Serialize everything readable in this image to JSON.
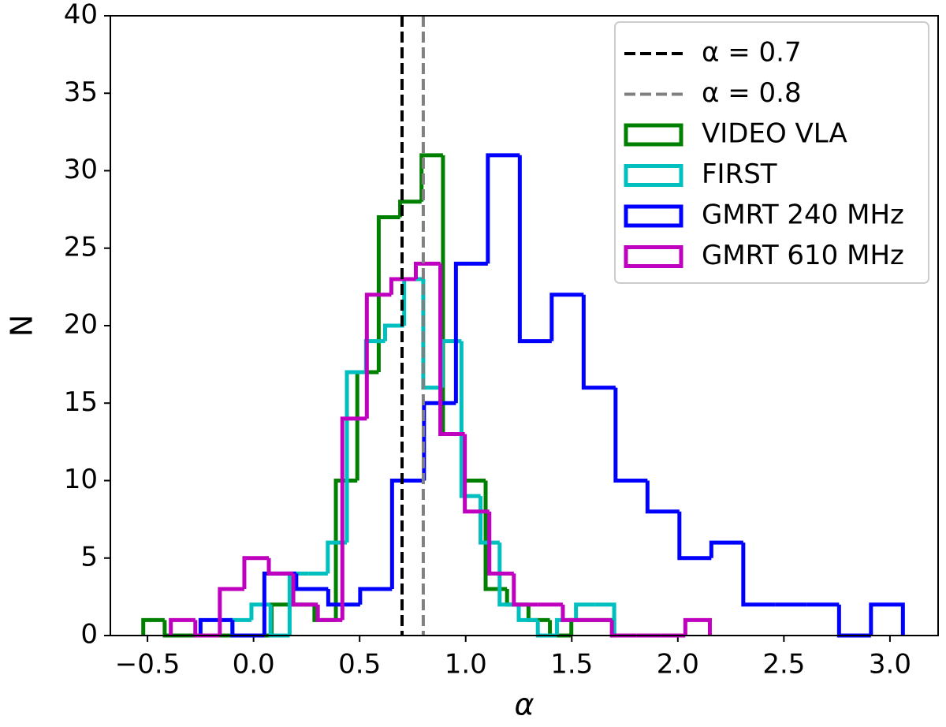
{
  "chart_data": {
    "type": "histogram",
    "xlabel": "α",
    "ylabel": "N",
    "xlim": [
      -0.675,
      3.227
    ],
    "ylim": [
      0,
      40
    ],
    "xticks": [
      {
        "value": -0.5,
        "label": "−0.5"
      },
      {
        "value": 0.0,
        "label": "0.0"
      },
      {
        "value": 0.5,
        "label": "0.5"
      },
      {
        "value": 1.0,
        "label": "1.0"
      },
      {
        "value": 1.5,
        "label": "1.5"
      },
      {
        "value": 2.0,
        "label": "2.0"
      },
      {
        "value": 2.5,
        "label": "2.5"
      },
      {
        "value": 3.0,
        "label": "3.0"
      }
    ],
    "yticks": [
      0,
      5,
      10,
      15,
      20,
      25,
      30,
      35,
      40
    ],
    "legend": "upper right",
    "vlines": [
      {
        "x": 0.7,
        "label": "α = 0.7",
        "color": "#000000"
      },
      {
        "x": 0.8,
        "label": "α = 0.8",
        "color": "#808080"
      }
    ],
    "series": [
      {
        "name": "VIDEO VLA",
        "color": "#008000",
        "bins": [
          -0.52,
          -0.419,
          -0.318,
          -0.217,
          -0.116,
          -0.016,
          0.085,
          0.186,
          0.287,
          0.388,
          0.489,
          0.59,
          0.691,
          0.792,
          0.893,
          0.994,
          1.094,
          1.195,
          1.296,
          1.397,
          1.498,
          1.599,
          1.7
        ],
        "values": [
          1,
          0,
          0,
          0,
          0,
          0,
          2,
          2,
          1,
          10,
          17,
          27,
          28,
          31,
          13,
          10,
          3,
          2,
          1,
          0,
          1,
          1
        ]
      },
      {
        "name": "FIRST",
        "color": "#00bfbf",
        "bins": [
          -0.1,
          -0.01,
          0.08,
          0.17,
          0.26,
          0.35,
          0.44,
          0.53,
          0.62,
          0.71,
          0.8,
          0.89,
          0.98,
          1.07,
          1.16,
          1.25,
          1.34,
          1.43,
          1.52,
          1.61,
          1.7
        ],
        "values": [
          1,
          2,
          0,
          4,
          4,
          6,
          17,
          19,
          20,
          23,
          16,
          19,
          9,
          6,
          2,
          1,
          0,
          1,
          2,
          2
        ]
      },
      {
        "name": "GMRT 240 MHz",
        "color": "#0000ff",
        "bins": [
          -0.25,
          -0.0995,
          0.051,
          0.2015,
          0.352,
          0.5025,
          0.653,
          0.8035,
          0.954,
          1.1045,
          1.255,
          1.4055,
          1.556,
          1.7065,
          1.857,
          2.0075,
          2.158,
          2.3085,
          2.459,
          2.6095,
          2.76,
          2.9105,
          3.061
        ],
        "values": [
          1,
          0,
          4,
          3,
          2,
          3,
          10,
          15,
          24,
          31,
          19,
          22,
          16,
          10,
          8,
          5,
          6,
          2,
          2,
          2,
          0,
          2
        ]
      },
      {
        "name": "GMRT 610 MHz",
        "color": "#bf00bf",
        "bins": [
          -0.39,
          -0.2745,
          -0.159,
          -0.0435,
          0.072,
          0.1875,
          0.303,
          0.4185,
          0.534,
          0.6495,
          0.765,
          0.8805,
          0.996,
          1.1115,
          1.227,
          1.3425,
          1.458,
          1.5735,
          1.689,
          1.8045,
          1.92,
          2.0355,
          2.151
        ],
        "values": [
          1,
          0,
          3,
          5,
          4,
          2,
          1,
          14,
          22,
          23,
          24,
          13,
          8,
          4,
          2,
          2,
          1,
          1,
          0,
          0,
          0,
          1
        ]
      }
    ]
  }
}
